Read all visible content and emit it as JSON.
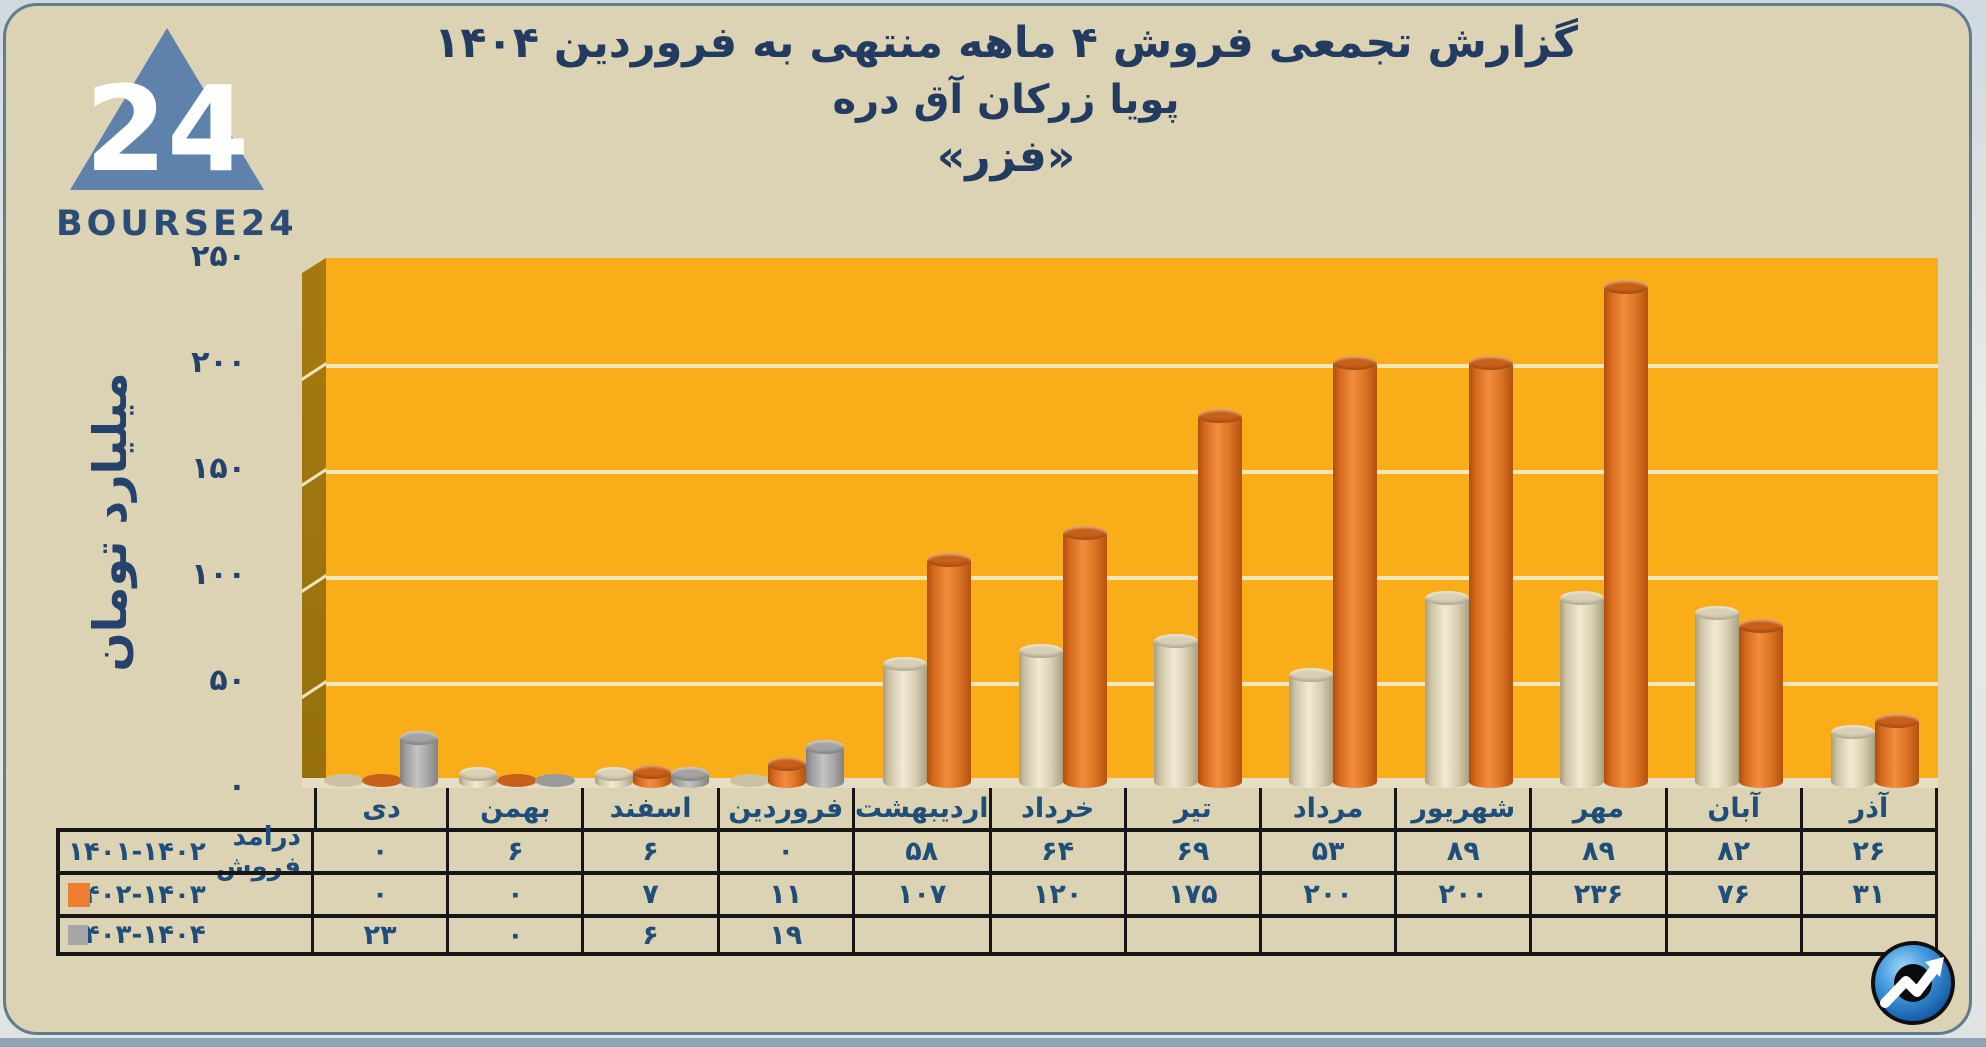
{
  "brand": {
    "logo_text": "BOURSE24",
    "triangle_number": "24"
  },
  "title": {
    "line1": "گزارش تجمعی فروش ۴ ماهه منتهی به فروردین ۱۴۰۴",
    "line2": "پویا زرکان آق دره",
    "line3": "«فزر»"
  },
  "axis": {
    "ylabel": "میلیارد تومان",
    "yticks": [
      "۲۵۰",
      "۲۰۰",
      "۱۵۰",
      "۱۰۰",
      "۵۰",
      "۰"
    ]
  },
  "chart_data": {
    "type": "bar",
    "title": "گزارش تجمعی فروش ۴ ماهه منتهی به فروردین ۱۴۰۴ - پویا زرکان آق دره «فزر»",
    "ylabel": "میلیارد تومان",
    "ylim": [
      0,
      250
    ],
    "ytick_values": [
      0,
      50,
      100,
      150,
      200,
      250
    ],
    "grid": true,
    "legend_position": "table-rows-left",
    "categories": [
      "دی",
      "بهمن",
      "اسفند",
      "فروردین",
      "اردیبهشت",
      "خرداد",
      "تیر",
      "مرداد",
      "شهریور",
      "مهر",
      "آبان",
      "آذر"
    ],
    "series": [
      {
        "name": "درامد فروش ۱۴۰۱-۱۴۰۲",
        "color": "#E9E1C8",
        "values": [
          0,
          6,
          6,
          0,
          58,
          64,
          69,
          53,
          89,
          89,
          82,
          26
        ]
      },
      {
        "name": "۱۴۰۲-۱۴۰۳",
        "color": "#ED7D31",
        "values": [
          0,
          0,
          7,
          11,
          107,
          120,
          175,
          200,
          200,
          236,
          76,
          31
        ]
      },
      {
        "name": "۱۴۰۳-۱۴۰۴",
        "color": "#A6A6A6",
        "values": [
          23,
          0,
          6,
          19,
          null,
          null,
          null,
          null,
          null,
          null,
          null,
          null
        ]
      }
    ]
  },
  "table": {
    "months": [
      "دی",
      "بهمن",
      "اسفند",
      "فروردین",
      "اردیبهشت",
      "خرداد",
      "تیر",
      "مرداد",
      "شهریور",
      "مهر",
      "آبان",
      "آذر"
    ],
    "rows": [
      {
        "label": "درامد فروش",
        "range": "۱۴۰۱-۱۴۰۲",
        "swatch": null,
        "cells": [
          "۰",
          "۶",
          "۶",
          "۰",
          "۵۸",
          "۶۴",
          "۶۹",
          "۵۳",
          "۸۹",
          "۸۹",
          "۸۲",
          "۲۶"
        ]
      },
      {
        "label": "",
        "range": "۱۴۰۲-۱۴۰۳",
        "swatch": "#ED7D31",
        "cells": [
          "۰",
          "۰",
          "۷",
          "۱۱",
          "۱۰۷",
          "۱۲۰",
          "۱۷۵",
          "۲۰۰",
          "۲۰۰",
          "۲۳۶",
          "۷۶",
          "۳۱"
        ]
      },
      {
        "label": "",
        "range": "۱۴۰۳-۱۴۰۴",
        "swatch": "#A6A6A6",
        "cells": [
          "۲۳",
          "۰",
          "۶",
          "۱۹",
          "",
          "",
          "",
          "",
          "",
          "",
          "",
          ""
        ]
      }
    ]
  },
  "colors": {
    "card_bg": "#DCD3B4",
    "plot_bg": "#F9AE19",
    "wall": "#9E760F",
    "floor": "#E6DEC4",
    "gridline": "#F2E6BD",
    "title_text": "#233B61",
    "table_text": "#1F4E79",
    "frame": "#5F7C90",
    "series_cream": "#E9E1C8",
    "series_orange": "#ED7D31",
    "series_gray": "#A6A6A6"
  }
}
